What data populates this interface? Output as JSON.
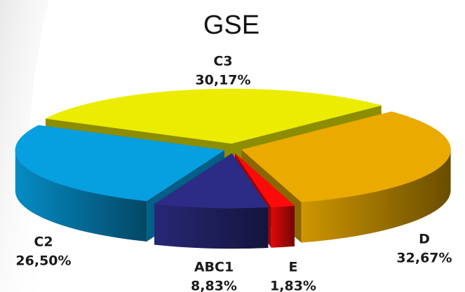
{
  "chart_data": {
    "type": "pie",
    "title": "GSE",
    "categories": [
      "C3",
      "D",
      "E",
      "ABC1",
      "C2"
    ],
    "values": [
      30.17,
      32.67,
      1.83,
      8.83,
      26.5
    ],
    "value_labels": [
      "30,17%",
      "32,67%",
      "1,83%",
      "8,83%",
      "26,50%"
    ],
    "colors": [
      "#ecec00",
      "#eaaa00",
      "#ff0a0a",
      "#2c2c86",
      "#069fe0"
    ]
  }
}
